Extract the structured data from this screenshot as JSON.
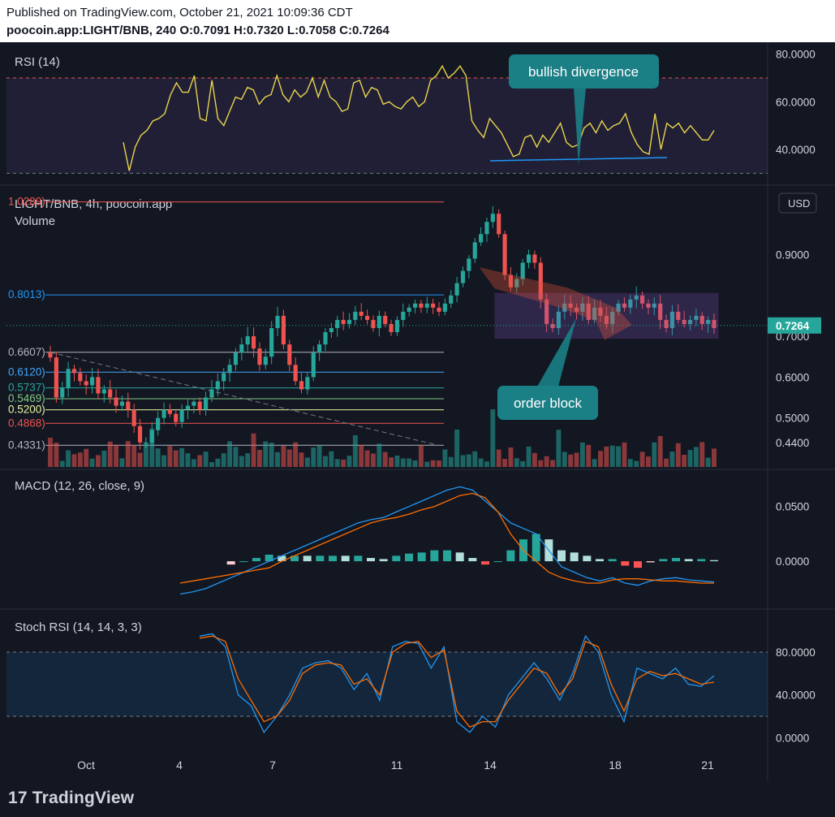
{
  "header": {
    "published": "Published on TradingView.com, October 21, 2021 10:09:36 CDT",
    "symbol_line": "poocoin.app:LIGHT/BNB, 240 O:0.7091 H:0.7320 L:0.7058 C:0.7264"
  },
  "footer": {
    "brand_glyph": "17",
    "brand": "TradingView"
  },
  "currency_button": "USD",
  "colors": {
    "background": "#131722",
    "up": "#26a69a",
    "down": "#ef5350",
    "rsi": "#e8d44d",
    "macd": "#2196f3",
    "signal": "#ff6d00",
    "annotation": "#1b7f86"
  },
  "chart_data": [
    {
      "type": "line",
      "title": "RSI (14)",
      "series": [
        {
          "name": "RSI",
          "values": [
            43,
            31,
            41,
            46,
            48,
            52,
            53,
            55,
            63,
            68,
            64,
            64,
            71,
            53,
            52,
            69,
            53,
            50,
            56,
            62,
            61,
            66,
            65,
            59,
            62,
            63,
            71,
            63,
            60,
            65,
            62,
            64,
            70,
            62,
            69,
            62,
            60,
            56,
            57,
            68,
            69,
            62,
            66,
            65,
            59,
            60,
            58,
            57,
            60,
            62,
            58,
            60,
            69,
            71,
            75,
            70,
            72,
            75,
            71,
            52,
            48,
            45,
            53,
            50,
            47,
            42,
            37,
            38,
            45,
            46,
            41,
            46,
            43,
            47,
            51,
            43,
            41,
            42,
            49,
            51,
            47,
            52,
            48,
            50,
            51,
            55,
            47,
            42,
            39,
            38,
            55,
            40,
            51,
            49,
            51,
            47,
            50,
            47,
            44,
            44,
            48
          ]
        }
      ],
      "yaxis_ticks": [
        80,
        60,
        40
      ],
      "ylim": [
        25,
        85
      ],
      "overbought": 70,
      "oversold": 30
    },
    {
      "type": "candlestick",
      "title": "LIGHT/BNB, 4h, poocoin.app",
      "volume_label": "Volume",
      "xlabels": [
        "Oct",
        "4",
        "7",
        "11",
        "14",
        "18",
        "21"
      ],
      "yaxis_ticks": [
        0.9,
        0.7,
        0.6,
        0.5,
        0.44
      ],
      "yaxis_tick_labels": [
        "0.9000",
        "0.7000",
        "0.6000",
        "0.5000",
        "0.4400"
      ],
      "last_price": "0.7264",
      "ylim": [
        0.38,
        1.05
      ],
      "ohlc_close": [
        0.648,
        0.55,
        0.574,
        0.62,
        0.61,
        0.59,
        0.58,
        0.6,
        0.56,
        0.57,
        0.55,
        0.53,
        0.54,
        0.52,
        0.48,
        0.44,
        0.44,
        0.47,
        0.5,
        0.52,
        0.51,
        0.49,
        0.52,
        0.53,
        0.54,
        0.52,
        0.55,
        0.57,
        0.59,
        0.61,
        0.63,
        0.66,
        0.68,
        0.7,
        0.67,
        0.63,
        0.65,
        0.72,
        0.75,
        0.68,
        0.63,
        0.59,
        0.57,
        0.6,
        0.66,
        0.68,
        0.71,
        0.72,
        0.74,
        0.73,
        0.74,
        0.76,
        0.75,
        0.74,
        0.72,
        0.75,
        0.73,
        0.71,
        0.74,
        0.76,
        0.77,
        0.78,
        0.77,
        0.78,
        0.77,
        0.76,
        0.78,
        0.8,
        0.83,
        0.86,
        0.89,
        0.93,
        0.95,
        0.98,
        1.0,
        0.95,
        0.85,
        0.82,
        0.84,
        0.88,
        0.9,
        0.88,
        0.79,
        0.73,
        0.72,
        0.76,
        0.78,
        0.77,
        0.76,
        0.78,
        0.74,
        0.77,
        0.75,
        0.73,
        0.76,
        0.78,
        0.77,
        0.79,
        0.8,
        0.78,
        0.77,
        0.78,
        0.74,
        0.72,
        0.76,
        0.74,
        0.73,
        0.74,
        0.75,
        0.73,
        0.74,
        0.72
      ],
      "fib_levels": [
        {
          "label": "1.0289)",
          "value": 1.0289,
          "color": "#ef5350"
        },
        {
          "label": "0.8013)",
          "value": 0.8013,
          "color": "#2196f3"
        },
        {
          "label": "0.6607)",
          "value": 0.6607,
          "color": "#b2b5be"
        },
        {
          "label": "0.6120)",
          "value": 0.612,
          "color": "#42a5f5"
        },
        {
          "label": "0.5737)",
          "value": 0.5737,
          "color": "#26a69a"
        },
        {
          "label": "0.5469)",
          "value": 0.5469,
          "color": "#81c784"
        },
        {
          "label": "0.5200)",
          "value": 0.52,
          "color": "#e8f5a0"
        },
        {
          "label": "0.4868)",
          "value": 0.4868,
          "color": "#ef5350"
        },
        {
          "label": "0.4331)",
          "value": 0.4331,
          "color": "#b2b5be"
        }
      ],
      "annotations": [
        "bullish divergence",
        "order block"
      ]
    },
    {
      "type": "line",
      "title": "MACD (12, 26, close, 9)",
      "series": [
        {
          "name": "MACD",
          "values": [
            -0.03,
            -0.028,
            -0.025,
            -0.02,
            -0.015,
            -0.01,
            -0.005,
            0.0,
            0.005,
            0.01,
            0.015,
            0.02,
            0.025,
            0.03,
            0.035,
            0.038,
            0.04,
            0.045,
            0.05,
            0.055,
            0.06,
            0.065,
            0.068,
            0.065,
            0.055,
            0.045,
            0.035,
            0.03,
            0.025,
            0.01,
            -0.005,
            -0.01,
            -0.015,
            -0.018,
            -0.015,
            -0.02,
            -0.022,
            -0.018,
            -0.016,
            -0.015,
            -0.017,
            -0.018,
            -0.019
          ]
        },
        {
          "name": "Signal",
          "values": [
            -0.02,
            -0.018,
            -0.016,
            -0.014,
            -0.012,
            -0.01,
            -0.008,
            -0.006,
            0.0,
            0.005,
            0.01,
            0.015,
            0.02,
            0.025,
            0.03,
            0.035,
            0.038,
            0.04,
            0.043,
            0.047,
            0.05,
            0.055,
            0.06,
            0.062,
            0.058,
            0.045,
            0.025,
            0.01,
            0.0,
            -0.01,
            -0.015,
            -0.018,
            -0.02,
            -0.02,
            -0.017,
            -0.016,
            -0.016,
            -0.017,
            -0.018,
            -0.018,
            -0.019,
            -0.02,
            -0.02
          ]
        }
      ],
      "yaxis_ticks": [
        0.05,
        0.0
      ],
      "yaxis_tick_labels": [
        "0.0500",
        "0.0000"
      ]
    },
    {
      "type": "line",
      "title": "Stoch RSI (14, 14, 3, 3)",
      "series": [
        {
          "name": "K",
          "values": [
            95,
            97,
            85,
            40,
            30,
            5,
            20,
            40,
            65,
            70,
            72,
            65,
            45,
            60,
            35,
            85,
            90,
            88,
            65,
            85,
            15,
            5,
            20,
            10,
            40,
            55,
            70,
            55,
            35,
            60,
            95,
            80,
            40,
            15,
            65,
            60,
            55,
            65,
            50,
            48,
            58
          ]
        },
        {
          "name": "D",
          "values": [
            93,
            95,
            90,
            55,
            35,
            15,
            20,
            35,
            60,
            68,
            70,
            68,
            50,
            55,
            40,
            80,
            88,
            90,
            75,
            82,
            25,
            10,
            15,
            15,
            35,
            50,
            65,
            60,
            40,
            55,
            90,
            85,
            50,
            25,
            55,
            62,
            58,
            60,
            55,
            50,
            52
          ]
        }
      ],
      "yaxis_ticks": [
        80,
        40,
        0
      ],
      "yaxis_tick_labels": [
        "80.0000",
        "40.0000",
        "0.0000"
      ]
    }
  ]
}
